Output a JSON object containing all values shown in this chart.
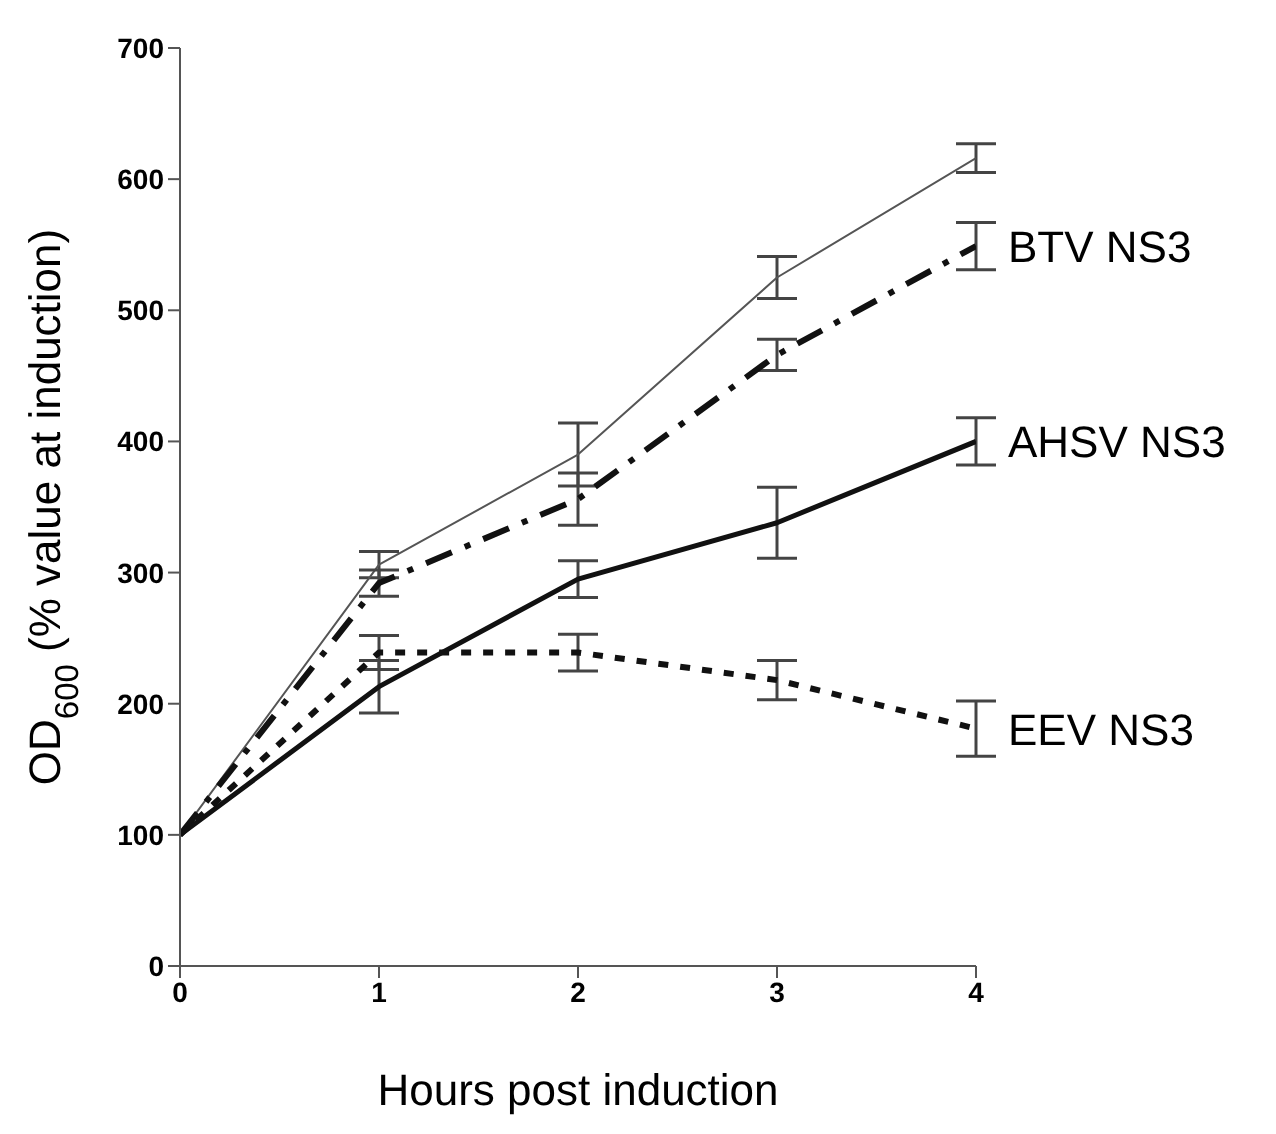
{
  "chart_data": {
    "type": "line",
    "xlabel": "Hours post induction",
    "ylabel": "OD$_{600}$ (% value at induction)",
    "x": [
      0,
      1,
      2,
      3,
      4
    ],
    "xlim": [
      0,
      4
    ],
    "xticks": [
      0,
      1,
      2,
      3,
      4
    ],
    "ylim": [
      0,
      700
    ],
    "yticks": [
      0,
      100,
      200,
      300,
      400,
      500,
      600,
      700
    ],
    "grid": false,
    "marker": "none",
    "series": [
      {
        "color": "#555555",
        "line_style": "solid",
        "values": [
          100,
          306,
          390,
          525,
          616
        ],
        "errors": [
          null,
          10,
          24,
          16,
          11
        ]
      },
      {
        "name": "BTV NS3",
        "color": "#111111",
        "line_style": "dashed",
        "values": [
          100,
          292,
          356,
          466,
          549
        ],
        "errors": [
          null,
          10,
          20,
          12,
          18
        ]
      },
      {
        "name": "AHSV NS3",
        "color": "#111111",
        "line_style": "solid",
        "values": [
          100,
          213,
          295,
          338,
          400
        ],
        "errors": [
          null,
          20,
          14,
          27,
          18
        ]
      },
      {
        "name": "EEV NS3",
        "color": "#111111",
        "line_style": "dotted",
        "values": [
          100,
          239,
          239,
          218,
          181
        ],
        "errors": [
          null,
          13,
          14,
          15,
          21
        ]
      }
    ]
  }
}
